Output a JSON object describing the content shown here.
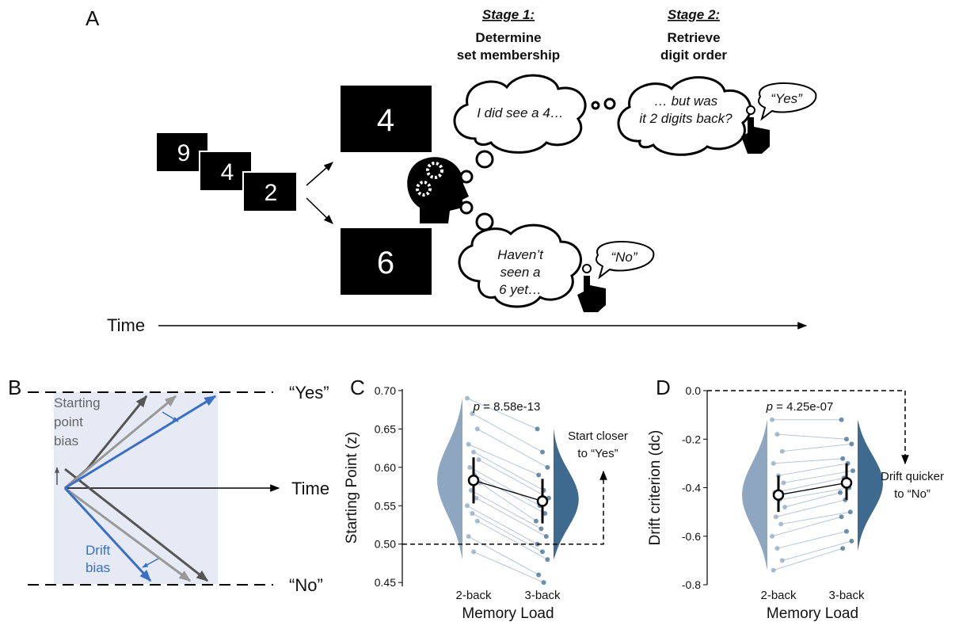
{
  "panel_a": {
    "label": "A",
    "sequence": [
      "9",
      "4",
      "2"
    ],
    "probe_match": "4",
    "probe_nonmatch": "6",
    "stage_1": {
      "title": "Stage 1:",
      "description": [
        "Determine",
        "set membership"
      ]
    },
    "stage_2": {
      "title": "Stage 2:",
      "description": [
        "Retrieve",
        "digit order"
      ]
    },
    "thought_1": "I did see a 4…",
    "thought_2": [
      "… but was",
      "it 2 digits back?"
    ],
    "response_yes": "“Yes”",
    "thought_no": [
      "Haven’t",
      "seen a",
      "6 yet…"
    ],
    "response_no": "“No”",
    "time_label": "Time"
  },
  "panel_b": {
    "label": "B",
    "starting_point_bias": [
      "Starting",
      "point",
      "bias"
    ],
    "drift_bias": [
      "Drift",
      "bias"
    ],
    "upper_bound": "“Yes”",
    "lower_bound": "“No”",
    "time_label": "Time"
  },
  "chart_data": [
    {
      "panel_label": "C",
      "type": "violin",
      "y_label": "Starting Point (z)",
      "x_label": "Memory Load",
      "categories": [
        "2-back",
        "3-back"
      ],
      "colors": [
        "#8ea6bf",
        "#3f6a8f"
      ],
      "means": [
        0.583,
        0.556
      ],
      "ci_low": [
        0.553,
        0.527
      ],
      "ci_high": [
        0.613,
        0.585
      ],
      "violin_min": [
        0.48,
        0.48
      ],
      "violin_max": [
        0.69,
        0.65
      ],
      "points": [
        [
          0.69,
          0.67,
          0.65,
          0.63,
          0.62,
          0.61,
          0.6,
          0.59,
          0.58,
          0.57,
          0.56,
          0.55,
          0.54,
          0.53,
          0.51,
          0.49
        ],
        [
          0.65,
          0.62,
          0.6,
          0.59,
          0.57,
          0.56,
          0.55,
          0.54,
          0.53,
          0.52,
          0.51,
          0.5,
          0.49,
          0.48,
          0.46,
          0.45
        ]
      ],
      "ylim": [
        0.445,
        0.702
      ],
      "yticks": [
        0.45,
        {
          "value": 0.5,
          "label": "0.50"
        },
        0.55,
        {
          "value": 0.6,
          "label": "0.60"
        },
        0.65,
        {
          "value": 0.7,
          "label": "0.70"
        }
      ],
      "p_symbol": "p",
      "p_text": " = 8.58e-13",
      "annotation": [
        "Start closer",
        "to “Yes”"
      ],
      "reference_line": 0.5
    },
    {
      "panel_label": "D",
      "type": "violin",
      "y_label": "Drift criterion (dc)",
      "x_label": "Memory Load",
      "categories": [
        "2-back",
        "3-back"
      ],
      "colors": [
        "#8ea6bf",
        "#3f6a8f"
      ],
      "means": [
        -0.43,
        -0.38
      ],
      "ci_low": [
        -0.5,
        -0.45
      ],
      "ci_high": [
        -0.35,
        -0.3
      ],
      "violin_min": [
        -0.74,
        -0.66
      ],
      "violin_max": [
        -0.12,
        -0.12
      ],
      "points": [
        [
          -0.12,
          -0.18,
          -0.25,
          -0.3,
          -0.35,
          -0.38,
          -0.42,
          -0.45,
          -0.48,
          -0.52,
          -0.55,
          -0.6,
          -0.65,
          -0.7,
          -0.74
        ],
        [
          -0.12,
          -0.2,
          -0.22,
          -0.28,
          -0.3,
          -0.33,
          -0.36,
          -0.4,
          -0.42,
          -0.45,
          -0.5,
          -0.52,
          -0.58,
          -0.62,
          -0.65
        ]
      ],
      "ylim": [
        -0.8,
        0.0
      ],
      "yticks": [
        -0.8,
        -0.6,
        -0.4,
        -0.2,
        {
          "value": 0.0,
          "label": "0.0"
        }
      ],
      "p_symbol": "p",
      "p_text": " = 4.25e-07",
      "annotation": [
        "Drift quicker",
        "to “No”"
      ],
      "reference_line": 0.0
    }
  ]
}
